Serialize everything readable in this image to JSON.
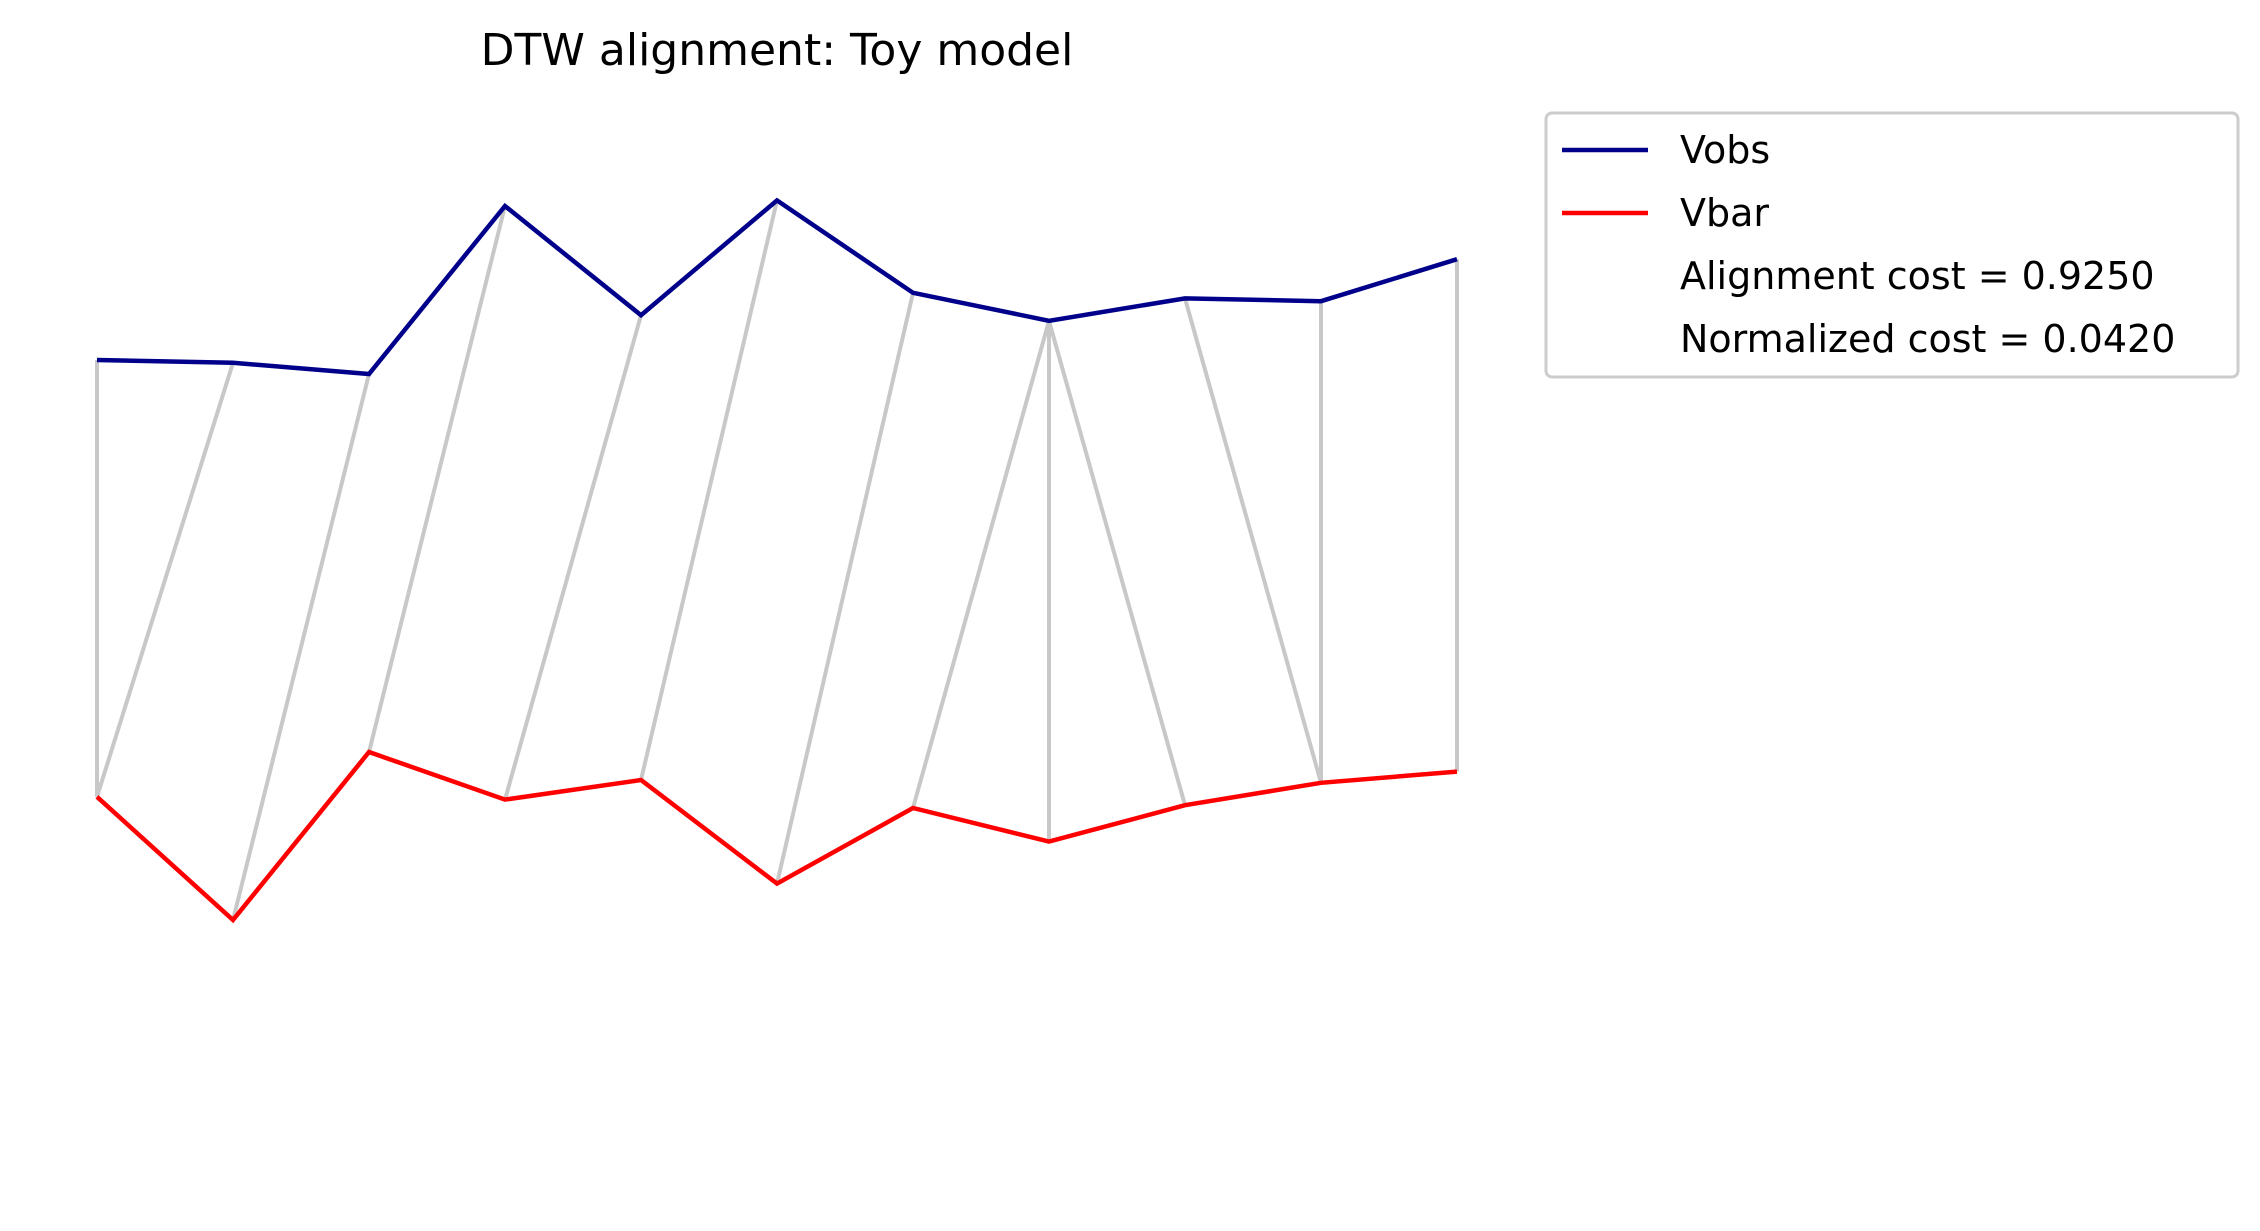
{
  "chart_data": {
    "type": "line",
    "title": "DTW alignment: Toy model",
    "xlabel": "",
    "ylabel": "",
    "axes_visible": false,
    "grid": false,
    "legend_placement": "outside-upper-right",
    "x": [
      0,
      1,
      2,
      3,
      4,
      5,
      6,
      7,
      8,
      9,
      10
    ],
    "series": [
      {
        "name": "Vobs",
        "color": "#00008b",
        "values": [
          0.0,
          -0.01,
          -0.05,
          0.55,
          0.16,
          0.57,
          0.24,
          0.14,
          0.22,
          0.21,
          0.36
        ]
      },
      {
        "name": "Vbar",
        "color": "#ff0000",
        "values": [
          -1.56,
          -2.0,
          -1.4,
          -1.57,
          -1.5,
          -1.87,
          -1.6,
          -1.72,
          -1.59,
          -1.51,
          -1.47
        ]
      }
    ],
    "alignment_pairs": [
      [
        0,
        0
      ],
      [
        1,
        0
      ],
      [
        2,
        1
      ],
      [
        3,
        2
      ],
      [
        4,
        3
      ],
      [
        5,
        4
      ],
      [
        6,
        5
      ],
      [
        7,
        6
      ],
      [
        7,
        7
      ],
      [
        7,
        8
      ],
      [
        8,
        9
      ],
      [
        9,
        9
      ],
      [
        10,
        10
      ]
    ],
    "alignment_line_color": "#c8c8c8",
    "legend": {
      "entries": [
        {
          "label": "Vobs",
          "color": "#00008b",
          "has_line": true
        },
        {
          "label": "Vbar",
          "color": "#ff0000",
          "has_line": true
        },
        {
          "label": "Alignment cost = 0.9250",
          "has_line": false
        },
        {
          "label": "Normalized cost = 0.0420",
          "has_line": false
        }
      ]
    }
  }
}
